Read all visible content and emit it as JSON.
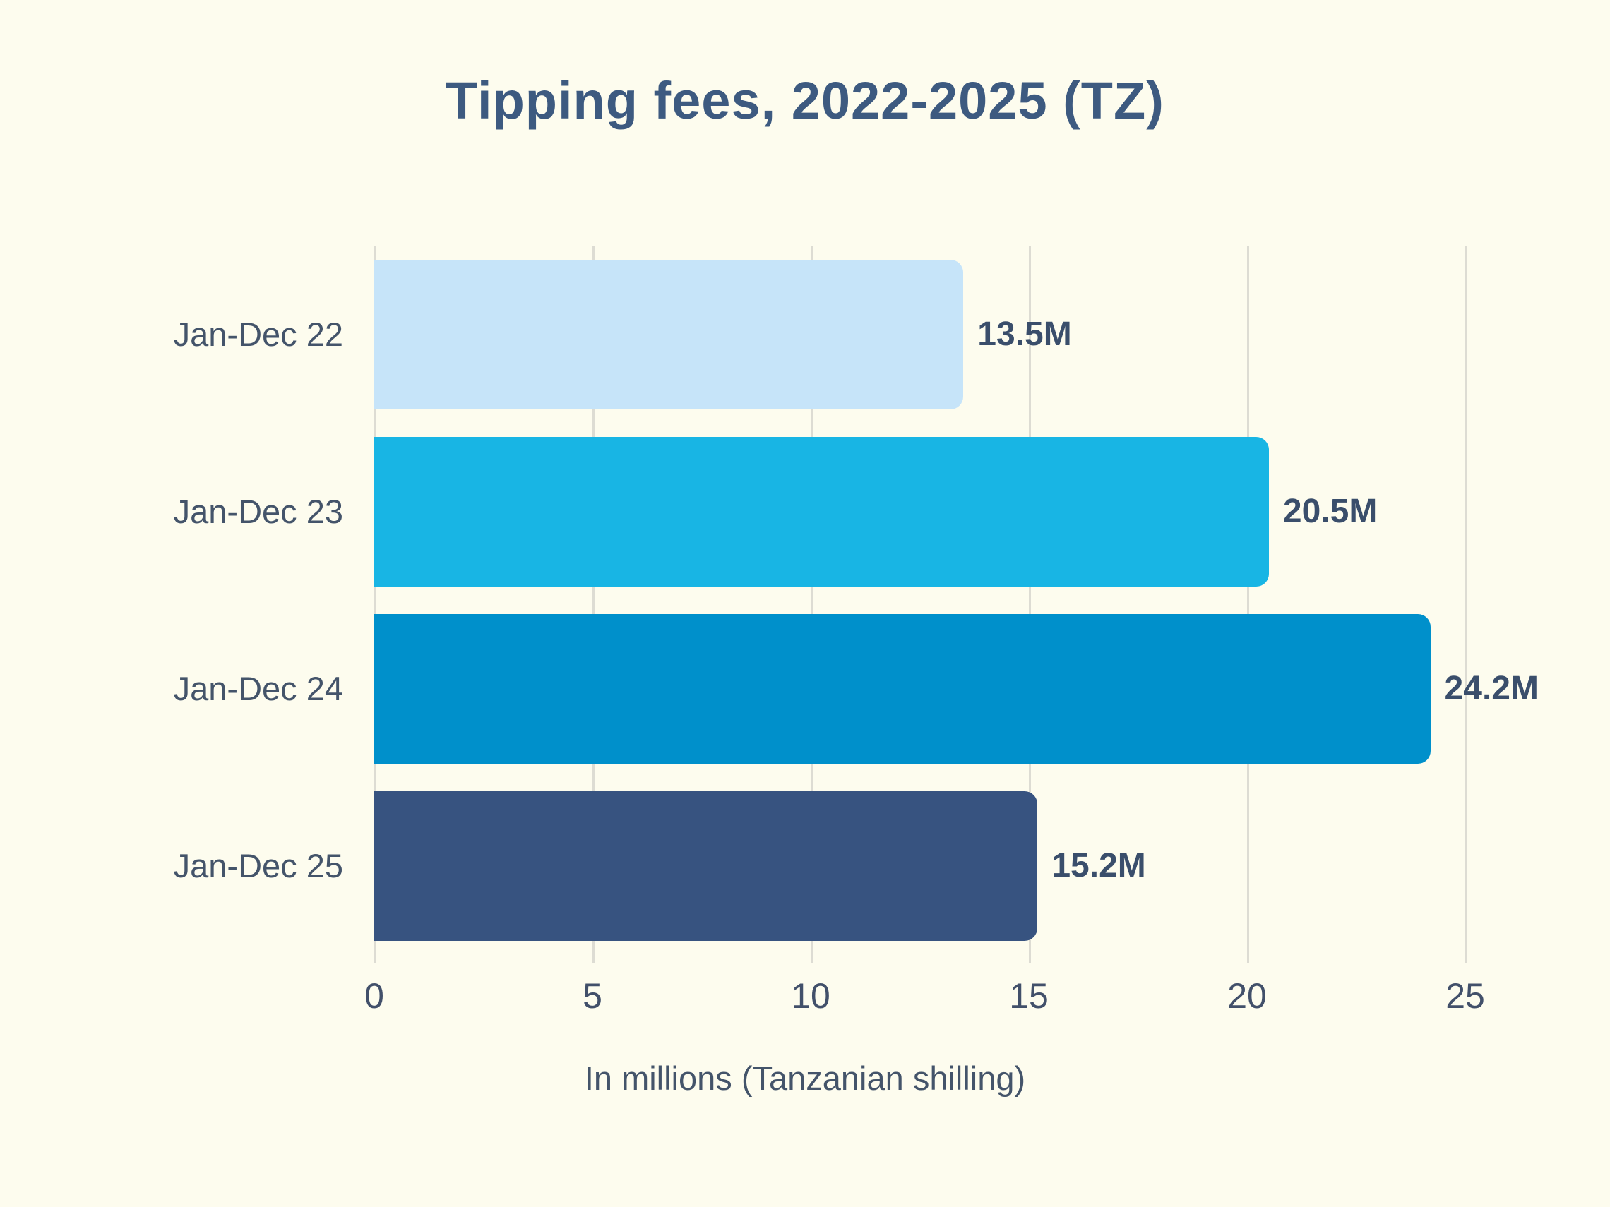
{
  "title": "Tipping fees, 2022-2025 (TZ)",
  "colors": {
    "background": "#FDFCEE",
    "title_text": "#3D5A80",
    "axis_text": "#44546A",
    "value_text": "#3A4E6B",
    "gridline": "#DDDCD3"
  },
  "chart_data": {
    "type": "bar",
    "orientation": "horizontal",
    "title": "Tipping fees, 2022-2025 (TZ)",
    "xlabel": "In millions (Tanzanian shilling)",
    "ylabel": "",
    "categories": [
      "Jan-Dec 22",
      "Jan-Dec 23",
      "Jan-Dec 24",
      "Jan-Dec 25"
    ],
    "values": [
      13.5,
      20.5,
      24.2,
      15.2
    ],
    "value_labels": [
      "13.5M",
      "20.5M",
      "24.2M",
      "15.2M"
    ],
    "bar_colors": [
      "#C6E4F9",
      "#18B5E4",
      "#0090CB",
      "#375380"
    ],
    "xticks": [
      0,
      5,
      10,
      15,
      20,
      25
    ],
    "xlim": [
      0,
      25
    ],
    "grid": "vertical-gridlines",
    "legend": "none"
  }
}
